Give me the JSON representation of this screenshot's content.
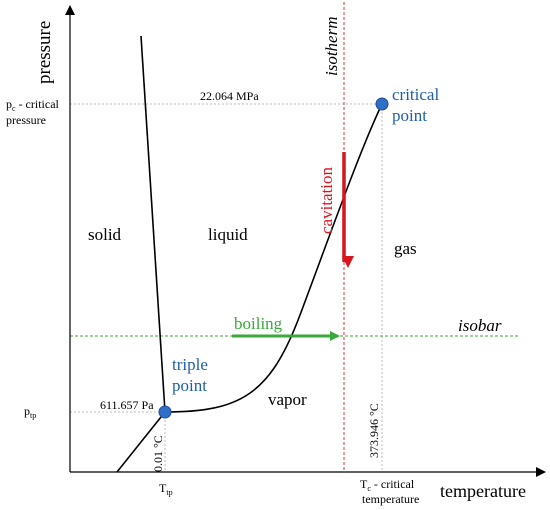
{
  "axes": {
    "y_label": "pressure",
    "x_label": "temperature"
  },
  "regions": {
    "solid": "solid",
    "liquid": "liquid",
    "gas": "gas",
    "vapor": "vapor"
  },
  "points": {
    "critical_line1": "critical",
    "critical_line2": "point",
    "triple_line1": "triple",
    "triple_line2": "point"
  },
  "annotations": {
    "isotherm": "isotherm",
    "isobar": "isobar",
    "boiling": "boiling",
    "cavitation": "cavitation",
    "critical_pressure_value": "22.064 MPa",
    "triple_pressure_value": "611.657 Pa",
    "triple_temp_value": "0.01 °C",
    "critical_temp_value": "373.946 °C"
  },
  "y_ticks": {
    "pc_main": "p",
    "pc_sub": "c",
    "pc_rest": " - critical",
    "pc_line2": "pressure",
    "ptp_main": "p",
    "ptp_sub": "tp"
  },
  "x_ticks": {
    "ttp_main": "T",
    "ttp_sub": "tp",
    "tc_main": "T",
    "tc_sub": "c",
    "tc_rest": " - critical",
    "tc_line2": "temperature"
  },
  "colors": {
    "point_fill": "#2f6fc8",
    "point_text": "#1f5fa8",
    "isotherm_line": "#e0303a",
    "cavitation_arrow": "#d8141e",
    "boiling_arrow": "#3aa83a",
    "isobar_line": "#3aa83a",
    "grid_line": "#bdbdbd",
    "curve": "#000000"
  }
}
